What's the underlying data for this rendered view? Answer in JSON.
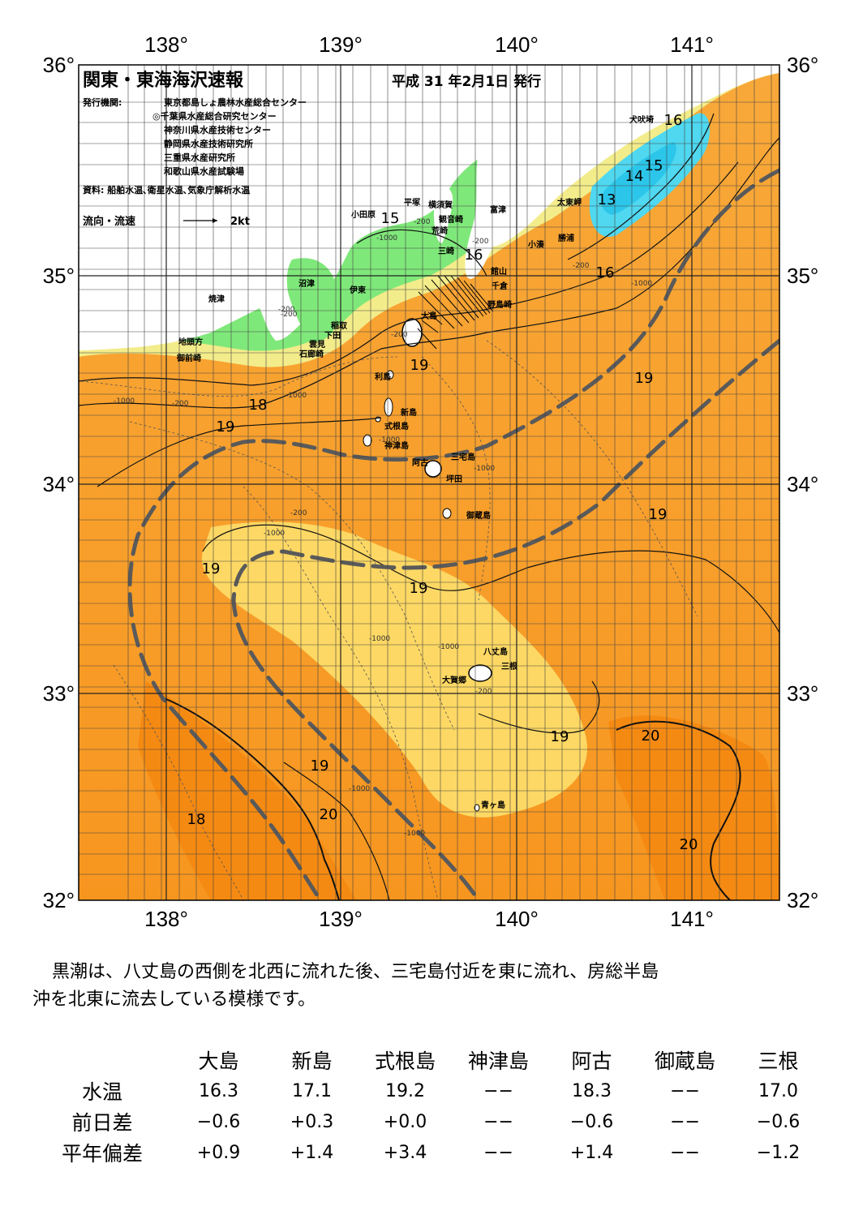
{
  "map": {
    "title": "関東・東海海沢速報",
    "date": "平成 31 年2月1日 発行",
    "publisher_label": "発行機関:",
    "publishers": [
      "東京都島しょ農林水産総合センター",
      "◎千葉県水産総合研究センター",
      "神奈川県水産技術センター",
      "静岡県水産技術研究所",
      "三重県水産研究所",
      "和歌山県水産試験場"
    ],
    "source": "資料: 船舶水温､衛星水温､気象庁解析水温",
    "current_legend": "流向・流速",
    "current_scale": "2kt",
    "lon_labels": [
      "138°",
      "139°",
      "140°",
      "141°"
    ],
    "lat_labels": [
      "36°",
      "35°",
      "34°",
      "33°",
      "32°"
    ],
    "places": {
      "inubosaki": "犬吠埼",
      "taitomisaki": "太東岬",
      "katsuura": "勝浦",
      "kominato": "小湊",
      "tomitsu": "富津",
      "tateyama": "館山",
      "chikura": "千倉",
      "nojimasaki": "野島崎",
      "yokosuka": "横須賀",
      "kannonzaki": "観音崎",
      "hiratsuka": "平塚",
      "odawara": "小田原",
      "arasaki": "荒崎",
      "misaki": "三崎",
      "numazu": "沼津",
      "ito": "伊東",
      "inatori": "稲取",
      "shimoda": "下田",
      "kumomi": "雲見",
      "irozaki": "石廊崎",
      "yaizu": "焼津",
      "jitogata": "地頭方",
      "omaezaki": "御前崎",
      "oshima": "大島",
      "toshima": "利島",
      "niijima": "新島",
      "shikinejima": "式根島",
      "kozushima": "神津島",
      "miyake": "三宅島",
      "ako": "阿古",
      "tsubota": "坪田",
      "mikurajima": "御蔵島",
      "hachijojima": "八丈島",
      "mitsune": "三根",
      "okago": "大賀郷",
      "aogashima": "青ヶ島"
    },
    "isotherm_labels": [
      "16",
      "15",
      "14",
      "13",
      "15",
      "16",
      "16",
      "19",
      "19",
      "18",
      "19",
      "19",
      "19",
      "19",
      "20",
      "19",
      "19",
      "20",
      "18",
      "20"
    ],
    "depth_labels": [
      "-200",
      "-200",
      "-200",
      "-1000",
      "-1000",
      "-1000",
      "-200",
      "-1000",
      "-200",
      "-1000",
      "-200",
      "-1000",
      "-1000",
      "-1000",
      "-1000",
      "-1000",
      "-200",
      "-1000",
      "-200",
      "-200"
    ]
  },
  "description": {
    "line1": "黒潮は、八丈島の西側を北西に流れた後、三宅島付近を東に流れ、房総半島",
    "line2": "沖を北東に流去している模様です。"
  },
  "table": {
    "columns": [
      "大島",
      "新島",
      "式根島",
      "神津島",
      "阿古",
      "御蔵島",
      "三根"
    ],
    "rows": [
      {
        "label": "水温",
        "values": [
          "16.3",
          "17.1",
          "19.2",
          "−−",
          "18.3",
          "−−",
          "17.0"
        ]
      },
      {
        "label": "前日差",
        "values": [
          "−0.6",
          "+0.3",
          "+0.0",
          "−−",
          "−0.6",
          "−−",
          "−0.6"
        ]
      },
      {
        "label": "平年偏差",
        "values": [
          "+0.9",
          "+1.4",
          "+3.4",
          "−−",
          "+1.4",
          "−−",
          "−1.2"
        ]
      }
    ]
  },
  "colors": {
    "kuroshio": "#5a5a5a",
    "warm20": "#f7941d",
    "warm19": "#f9b23b",
    "cool18": "#fbd558",
    "cold16": "#5ee05e",
    "cold13": "#45d6ee",
    "land": "#ffffff"
  }
}
